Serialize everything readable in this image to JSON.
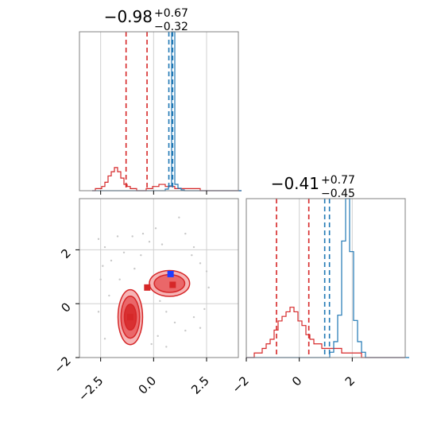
{
  "chart_data": {
    "type": "corner",
    "colors": {
      "red": "#d62728",
      "blue": "#1f77b4",
      "axis": "#808080",
      "grid": "#d0d0d0",
      "scatter": "#c8c8c8"
    },
    "panels": [
      {
        "id": "hist_p1",
        "type": "histogram",
        "title": {
          "value": "−0.98",
          "plus": "+0.67",
          "minus": "−0.32"
        },
        "xlim": [
          -3.5,
          4.0
        ],
        "x_ticks": [
          -2.5,
          0.0,
          2.5
        ],
        "bins": {
          "start": -2.9,
          "width": 0.15
        },
        "series": [
          {
            "name": "red",
            "counts": [
              0,
              1,
              1,
              2,
              4,
              7,
              9,
              11,
              9,
              6,
              3,
              2,
              1,
              1,
              0,
              0,
              0,
              1,
              1,
              2,
              2,
              3,
              3,
              2,
              2,
              2,
              1,
              1,
              1,
              1,
              1,
              1,
              1,
              1,
              0,
              0,
              0,
              0,
              0,
              0,
              0,
              0,
              0,
              0,
              0,
              0,
              0
            ],
            "quantiles": [
              -1.3,
              -0.31
            ]
          },
          {
            "name": "blue",
            "counts": [
              0,
              0,
              0,
              0,
              0,
              0,
              0,
              0,
              0,
              0,
              0,
              0,
              0,
              0,
              0,
              0,
              0,
              0,
              0,
              0,
              0,
              0,
              0,
              2,
              6,
              200,
              8,
              3,
              1,
              0,
              0,
              0,
              0,
              0,
              0,
              0,
              0,
              0,
              0,
              0,
              0,
              0,
              0,
              0,
              0,
              0,
              0
            ],
            "quantiles": [
              0.72,
              0.9
            ]
          }
        ]
      },
      {
        "id": "hist_p2",
        "type": "histogram",
        "title": {
          "value": "−0.41",
          "plus": "+0.77",
          "minus": "−0.45"
        },
        "xlim": [
          -2.0,
          4.0
        ],
        "x_ticks": [
          -2,
          0,
          2
        ],
        "x_tick_labels": [
          "−2",
          "0",
          "2"
        ],
        "bins": {
          "start": -2.0,
          "width": 0.15
        },
        "series": [
          {
            "name": "red",
            "counts": [
              0,
              0,
              1,
              1,
              2,
              3,
              4,
              6,
              8,
              9,
              10,
              11,
              10,
              8,
              7,
              5,
              4,
              3,
              3,
              2,
              2,
              2,
              2,
              2,
              1,
              1,
              1,
              1,
              1,
              0,
              0,
              0,
              0,
              0,
              0,
              0,
              0,
              0,
              0,
              0
            ],
            "quantiles": [
              -0.86,
              0.36
            ]
          },
          {
            "name": "blue",
            "counts": [
              0,
              0,
              0,
              0,
              0,
              0,
              0,
              0,
              0,
              0,
              0,
              0,
              0,
              0,
              0,
              0,
              0,
              0,
              0,
              0,
              0,
              1,
              3,
              8,
              22,
              30,
              20,
              7,
              3,
              1,
              0,
              0,
              0,
              0,
              0,
              0,
              0,
              0,
              0,
              0,
              0
            ],
            "quantiles": [
              0.96,
              1.14
            ]
          }
        ]
      },
      {
        "id": "joint",
        "type": "contour",
        "xlim": [
          -3.5,
          4.0
        ],
        "ylim": [
          -2.0,
          3.9
        ],
        "x_ticks": [
          -2.5,
          0.0,
          2.5
        ],
        "x_tick_labels": [
          "−2.5",
          "0.0",
          "2.5"
        ],
        "y_ticks": [
          -2,
          0,
          2
        ],
        "y_tick_labels": [
          "−2",
          "0",
          "2"
        ],
        "markers": {
          "red": [
            [
              -0.3,
              0.6
            ],
            [
              0.9,
              0.7
            ],
            [
              -1.1,
              -0.5
            ]
          ],
          "blue": [
            [
              0.8,
              1.1
            ]
          ]
        },
        "red_modes": [
          {
            "center": [
              -1.1,
              -0.5
            ],
            "radii": [
              [
                0.58,
                1.02
              ],
              [
                0.44,
                0.78
              ],
              [
                0.28,
                0.48
              ]
            ]
          },
          {
            "center": [
              0.75,
              0.75
            ],
            "radii": [
              [
                0.95,
                0.48
              ],
              [
                0.72,
                0.33
              ]
            ]
          }
        ],
        "scatter_points": [
          [
            -2.3,
            2.1
          ],
          [
            -2.0,
            1.6
          ],
          [
            -1.7,
            2.5
          ],
          [
            -1.4,
            1.9
          ],
          [
            -1.0,
            2.5
          ],
          [
            -0.5,
            2.6
          ],
          [
            -0.2,
            2.3
          ],
          [
            0.1,
            2.8
          ],
          [
            0.4,
            2.2
          ],
          [
            1.2,
            3.2
          ],
          [
            1.5,
            2.6
          ],
          [
            1.9,
            2.1
          ],
          [
            2.2,
            1.5
          ],
          [
            2.5,
            1.2
          ],
          [
            2.6,
            0.6
          ],
          [
            2.4,
            -0.2
          ],
          [
            1.9,
            -0.5
          ],
          [
            1.5,
            -1.0
          ],
          [
            1.0,
            -0.7
          ],
          [
            0.6,
            -0.3
          ],
          [
            0.2,
            -1.2
          ],
          [
            -0.1,
            -1.5
          ],
          [
            0.6,
            -1.6
          ],
          [
            -2.5,
            0.9
          ],
          [
            -2.6,
            -0.3
          ],
          [
            -2.3,
            -1.3
          ],
          [
            -2.1,
            0.3
          ],
          [
            -2.4,
            1.4
          ],
          [
            -0.9,
            1.3
          ],
          [
            -1.6,
            0.9
          ],
          [
            0.3,
            0.1
          ],
          [
            -2.6,
            2.4
          ],
          [
            1.8,
            1.8
          ],
          [
            -0.6,
            1.8
          ],
          [
            2.2,
            -0.9
          ]
        ]
      }
    ]
  }
}
